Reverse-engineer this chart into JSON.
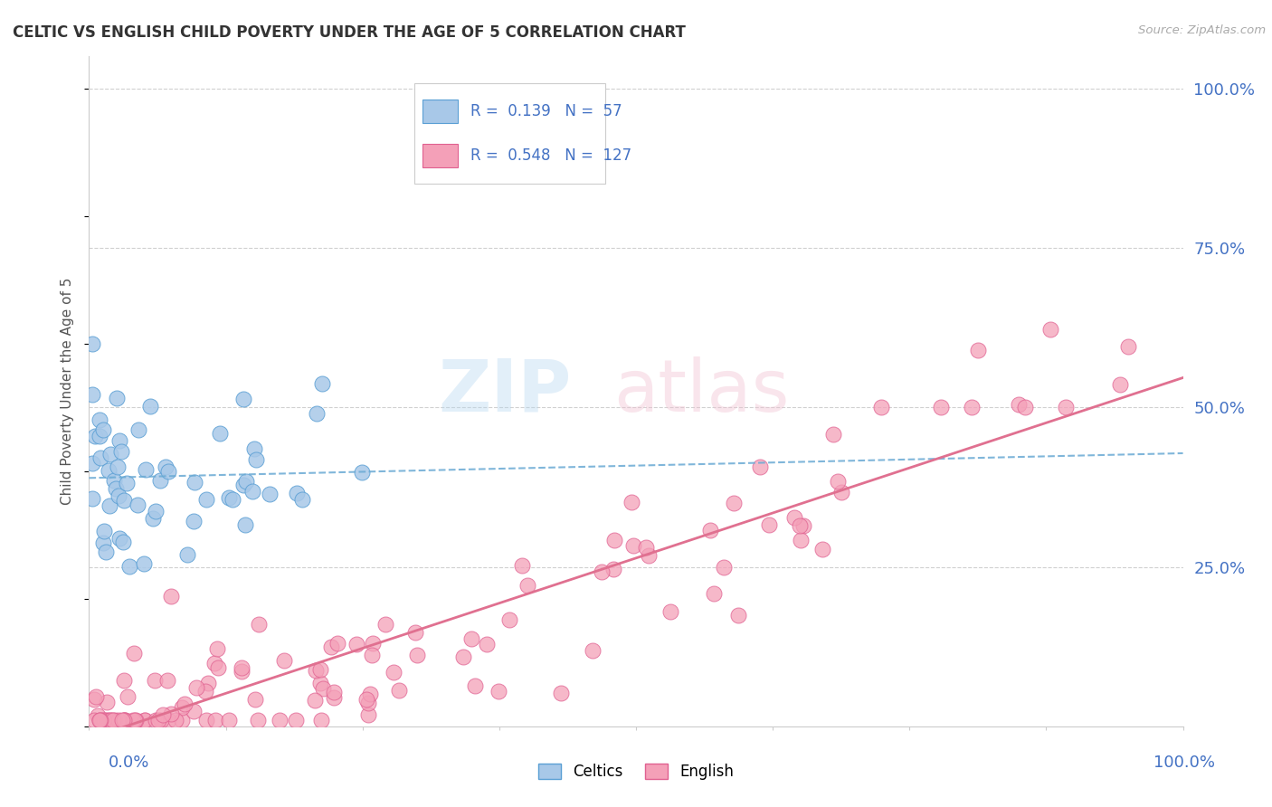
{
  "title": "CELTIC VS ENGLISH CHILD POVERTY UNDER THE AGE OF 5 CORRELATION CHART",
  "source": "Source: ZipAtlas.com",
  "ylabel": "Child Poverty Under the Age of 5",
  "xlim": [
    0.0,
    1.0
  ],
  "ylim": [
    0.0,
    1.05
  ],
  "legend_r1": "R =  0.139",
  "legend_n1": "N =  57",
  "legend_r2": "R =  0.548",
  "legend_n2": "N =  127",
  "celtics_color": "#a8c8e8",
  "english_color": "#f4a0b8",
  "celtics_edge": "#5a9fd4",
  "english_edge": "#e06090",
  "trendline_celtic_color": "#6aaad4",
  "trendline_english_color": "#e07090",
  "background_color": "#ffffff",
  "grid_color": "#d0d0d0",
  "axis_label_color": "#4472c4",
  "legend_text_color": "#4472c4"
}
